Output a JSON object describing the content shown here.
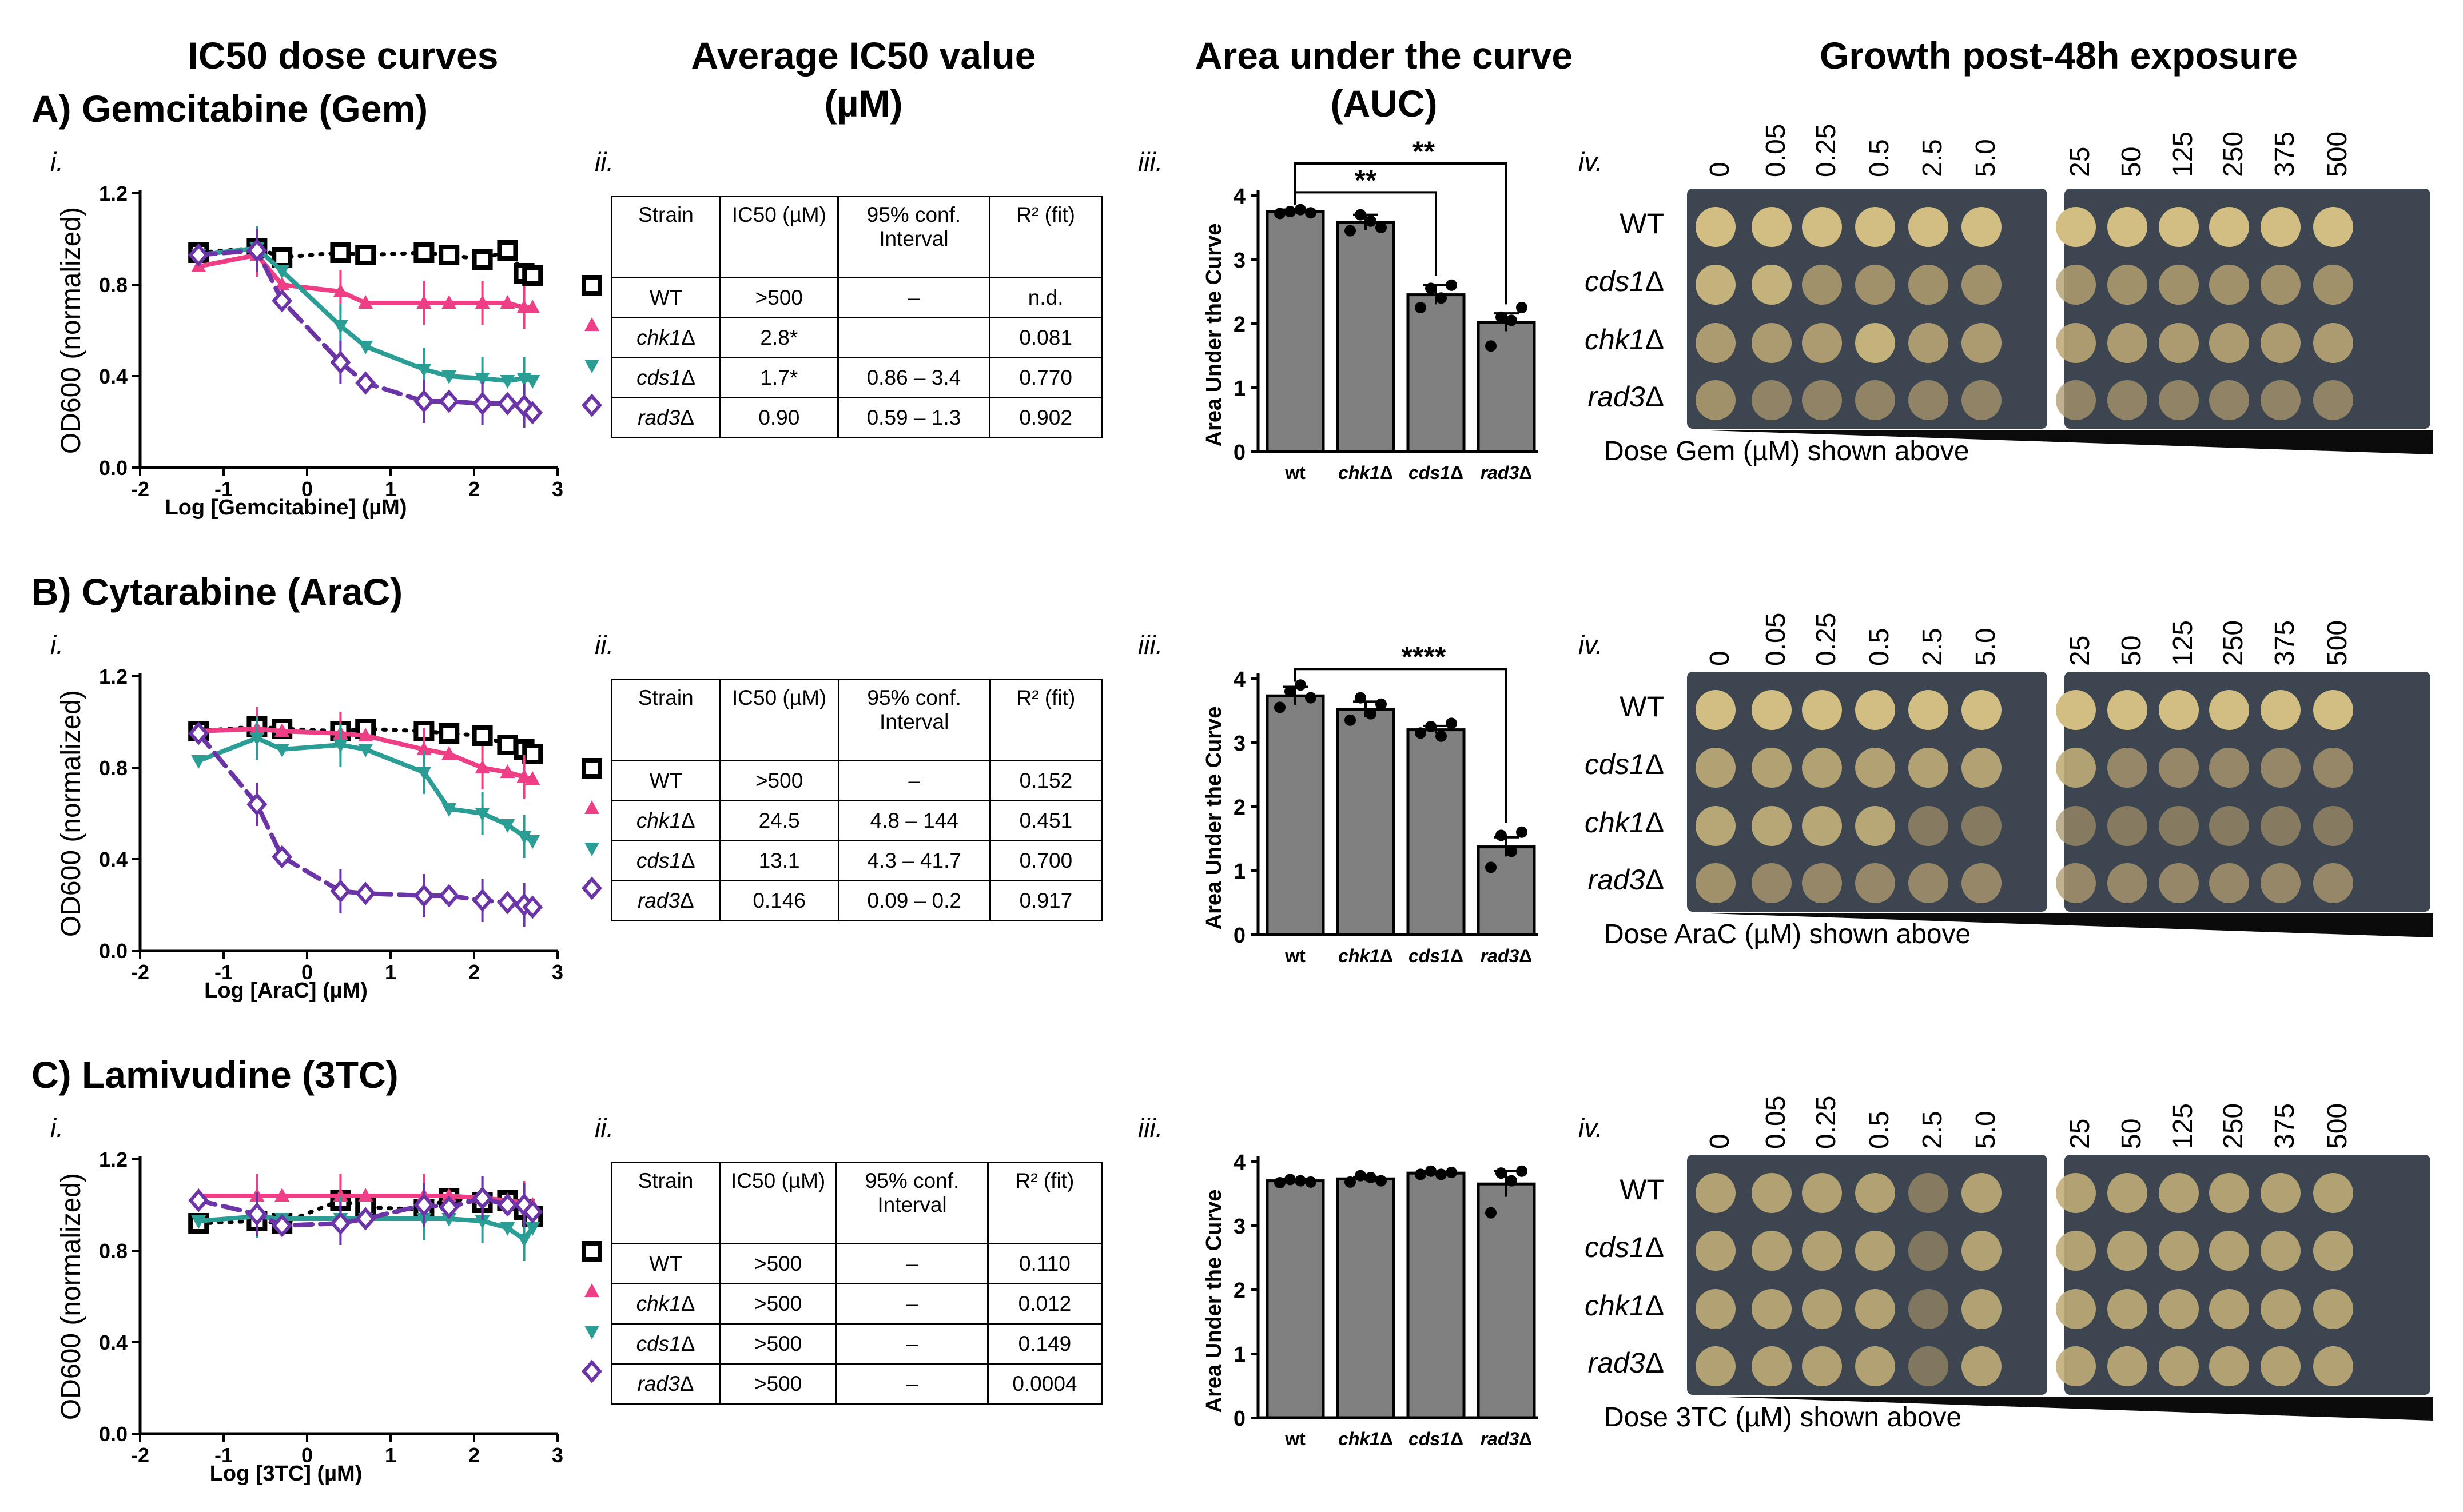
{
  "column_titles": {
    "c1": "IC50 dose curves",
    "c2a": "Average IC50 value",
    "c2b": "(µM)",
    "c3a": "Area under the curve",
    "c3b": "(AUC)",
    "c4": "Growth post-48h exposure"
  },
  "panel_labels": {
    "i": "i.",
    "ii": "ii.",
    "iii": "iii.",
    "iv": "iv."
  },
  "sections": [
    {
      "title": "A)  Gemcitabine (Gem)",
      "xlabel": "Log [Gemcitabine] (µM)",
      "dose_caption": "Dose Gem (µM) shown above",
      "table": {
        "headers": [
          "Strain",
          "IC50 (µM)",
          "95% conf. Interval",
          "R² (fit)"
        ],
        "rows": [
          [
            "WT",
            ">500",
            "–",
            "n.d."
          ],
          [
            "chk1Δ",
            "2.8*",
            "",
            "0.081"
          ],
          [
            "cds1Δ",
            "1.7*",
            "0.86 – 3.4",
            "0.770"
          ],
          [
            "rad3Δ",
            "0.90",
            "0.59 – 1.3",
            "0.902"
          ]
        ]
      },
      "auc_sig": [
        "**",
        "**"
      ]
    },
    {
      "title": "B)  Cytarabine (AraC)",
      "xlabel": "Log [AraC] (µM)",
      "dose_caption": "Dose AraC (µM) shown above",
      "table": {
        "headers": [
          "Strain",
          "IC50 (µM)",
          "95% conf. Interval",
          "R² (fit)"
        ],
        "rows": [
          [
            "WT",
            ">500",
            "–",
            "0.152"
          ],
          [
            "chk1Δ",
            "24.5",
            "4.8 – 144",
            "0.451"
          ],
          [
            "cds1Δ",
            "13.1",
            "4.3 – 41.7",
            "0.700"
          ],
          [
            "rad3Δ",
            "0.146",
            "0.09 – 0.2",
            "0.917"
          ]
        ]
      },
      "auc_sig": [
        "****"
      ]
    },
    {
      "title": "C)  Lamivudine (3TC)",
      "xlabel": "Log [3TC] (µM)",
      "dose_caption": "Dose 3TC (µM) shown above",
      "table": {
        "headers": [
          "Strain",
          "IC50 (µM)",
          "95% conf. Interval",
          "R² (fit)"
        ],
        "rows": [
          [
            "WT",
            ">500",
            "–",
            "0.110"
          ],
          [
            "chk1Δ",
            ">500",
            "–",
            "0.012"
          ],
          [
            "cds1Δ",
            ">500",
            "–",
            "0.149"
          ],
          [
            "rad3Δ",
            ">500",
            "–",
            "0.0004"
          ]
        ]
      },
      "auc_sig": []
    }
  ],
  "plate_doses": [
    "0",
    "0.05",
    "0.25",
    "0.5",
    "2.5",
    "5.0",
    "25",
    "50",
    "125",
    "250",
    "375",
    "500"
  ],
  "plate_strains": [
    [
      "WT",
      "cds1Δ",
      "chk1Δ",
      "rad3Δ"
    ],
    [
      "WT",
      "cds1Δ",
      "chk1Δ",
      "rad3Δ"
    ],
    [
      "WT",
      "cds1Δ",
      "chk1Δ",
      "rad3Δ"
    ]
  ],
  "colors": {
    "WT": "#000000",
    "chk1": "#ee3f86",
    "cds1": "#2a9d95",
    "rad3": "#6b35a8",
    "bar": "#808080"
  },
  "chart_data": [
    {
      "type": "line",
      "title": "IC50 dose curves – Gemcitabine",
      "xlabel": "Log [Gemcitabine] (µM)",
      "ylabel": "OD600 (normalized)",
      "xlim": [
        -2,
        3
      ],
      "ylim": [
        0,
        1.2
      ],
      "xticks": [
        "-2",
        "-1",
        "0",
        "1",
        "2",
        "3"
      ],
      "yticks": [
        "0.0",
        "0.4",
        "0.8",
        "1.2"
      ],
      "x": [
        -1.3,
        -0.6,
        -0.3,
        0.4,
        0.7,
        1.4,
        1.7,
        2.1,
        2.4,
        2.6,
        2.7
      ],
      "series": [
        {
          "name": "WT",
          "values": [
            0.94,
            0.96,
            0.92,
            0.94,
            0.93,
            0.94,
            0.93,
            0.91,
            0.95,
            0.85,
            0.84
          ]
        },
        {
          "name": "chk1Δ",
          "values": [
            0.88,
            0.93,
            0.8,
            0.77,
            0.72,
            0.72,
            0.72,
            0.72,
            0.72,
            0.7,
            0.7
          ]
        },
        {
          "name": "cds1Δ",
          "values": [
            0.93,
            0.96,
            0.86,
            0.62,
            0.53,
            0.43,
            0.4,
            0.39,
            0.38,
            0.39,
            0.38
          ]
        },
        {
          "name": "rad3Δ",
          "values": [
            0.93,
            0.95,
            0.73,
            0.46,
            0.37,
            0.29,
            0.29,
            0.28,
            0.28,
            0.27,
            0.24
          ]
        }
      ]
    },
    {
      "type": "bar",
      "title": "Area under the curve – Gemcitabine",
      "ylabel": "Area Under the Curve",
      "ylim": [
        0,
        4
      ],
      "yticks": [
        "0",
        "1",
        "2",
        "3",
        "4"
      ],
      "categories": [
        "wt",
        "chk1Δ",
        "cds1Δ",
        "rad3Δ"
      ],
      "values": [
        3.75,
        3.58,
        2.45,
        2.02
      ],
      "points": [
        [
          3.72,
          3.75,
          3.78,
          3.73
        ],
        [
          3.45,
          3.7,
          3.6,
          3.5
        ],
        [
          2.25,
          2.55,
          2.4,
          2.6
        ],
        [
          1.65,
          2.1,
          2.05,
          2.25
        ]
      ],
      "errors": [
        0.03,
        0.12,
        0.15,
        0.14
      ]
    },
    {
      "type": "line",
      "title": "IC50 dose curves – Cytarabine",
      "xlabel": "Log [AraC] (µM)",
      "ylabel": "OD600 (normalized)",
      "xlim": [
        -2,
        3
      ],
      "ylim": [
        0,
        1.2
      ],
      "xticks": [
        "-2",
        "-1",
        "0",
        "1",
        "2",
        "3"
      ],
      "yticks": [
        "0.0",
        "0.4",
        "0.8",
        "1.2"
      ],
      "x": [
        -1.3,
        -0.6,
        -0.3,
        0.4,
        0.7,
        1.4,
        1.7,
        2.1,
        2.4,
        2.6,
        2.7
      ],
      "series": [
        {
          "name": "WT",
          "values": [
            0.96,
            0.98,
            0.97,
            0.96,
            0.97,
            0.96,
            0.95,
            0.94,
            0.9,
            0.88,
            0.86
          ]
        },
        {
          "name": "chk1Δ",
          "values": [
            0.96,
            0.97,
            0.96,
            0.95,
            0.94,
            0.88,
            0.86,
            0.8,
            0.78,
            0.76,
            0.75
          ]
        },
        {
          "name": "cds1Δ",
          "values": [
            0.83,
            0.93,
            0.88,
            0.9,
            0.88,
            0.78,
            0.62,
            0.6,
            0.55,
            0.5,
            0.48
          ]
        },
        {
          "name": "rad3Δ",
          "values": [
            0.95,
            0.64,
            0.41,
            0.26,
            0.25,
            0.24,
            0.24,
            0.22,
            0.21,
            0.2,
            0.19
          ]
        }
      ]
    },
    {
      "type": "bar",
      "title": "Area under the curve – Cytarabine",
      "ylabel": "Area Under the Curve",
      "ylim": [
        0,
        4
      ],
      "yticks": [
        "0",
        "1",
        "2",
        "3",
        "4"
      ],
      "categories": [
        "wt",
        "chk1Δ",
        "cds1Δ",
        "rad3Δ"
      ],
      "values": [
        3.73,
        3.52,
        3.2,
        1.37
      ],
      "points": [
        [
          3.55,
          3.8,
          3.9,
          3.7
        ],
        [
          3.35,
          3.7,
          3.45,
          3.6
        ],
        [
          3.15,
          3.25,
          3.1,
          3.3
        ],
        [
          1.05,
          1.55,
          1.3,
          1.6
        ]
      ],
      "errors": [
        0.14,
        0.12,
        0.06,
        0.15
      ]
    },
    {
      "type": "line",
      "title": "IC50 dose curves – Lamivudine",
      "xlabel": "Log [3TC] (µM)",
      "ylabel": "OD600 (normalized)",
      "xlim": [
        -2,
        3
      ],
      "ylim": [
        0,
        1.2
      ],
      "xticks": [
        "-2",
        "-1",
        "0",
        "1",
        "2",
        "3"
      ],
      "yticks": [
        "0.0",
        "0.4",
        "0.8",
        "1.2"
      ],
      "x": [
        -1.3,
        -0.6,
        -0.3,
        0.4,
        0.7,
        1.4,
        1.7,
        2.1,
        2.4,
        2.6,
        2.7
      ],
      "series": [
        {
          "name": "WT",
          "values": [
            0.92,
            0.93,
            0.92,
            1.02,
            0.99,
            0.98,
            1.03,
            1.01,
            1.02,
            0.98,
            0.95
          ]
        },
        {
          "name": "chk1Δ",
          "values": [
            1.04,
            1.04,
            1.04,
            1.04,
            1.04,
            1.04,
            1.04,
            1.03,
            1.02,
            1.01,
            1.0
          ]
        },
        {
          "name": "cds1Δ",
          "values": [
            0.93,
            0.95,
            0.94,
            0.94,
            0.94,
            0.94,
            0.94,
            0.93,
            0.9,
            0.85,
            0.9
          ]
        },
        {
          "name": "rad3Δ",
          "values": [
            1.02,
            0.96,
            0.91,
            0.92,
            0.94,
            1.0,
            0.99,
            1.03,
            1.0,
            1.0,
            0.97
          ]
        }
      ]
    },
    {
      "type": "bar",
      "title": "Area under the curve – Lamivudine",
      "ylabel": "Area Under the Curve",
      "ylim": [
        0,
        4
      ],
      "yticks": [
        "0",
        "1",
        "2",
        "3",
        "4"
      ],
      "categories": [
        "wt",
        "chk1Δ",
        "cds1Δ",
        "rad3Δ"
      ],
      "values": [
        3.7,
        3.73,
        3.82,
        3.65
      ],
      "points": [
        [
          3.67,
          3.72,
          3.7,
          3.68
        ],
        [
          3.68,
          3.78,
          3.75,
          3.7
        ],
        [
          3.8,
          3.85,
          3.8,
          3.83
        ],
        [
          3.2,
          3.82,
          3.7,
          3.85
        ]
      ],
      "errors": [
        0.03,
        0.03,
        0.02,
        0.2
      ]
    }
  ]
}
